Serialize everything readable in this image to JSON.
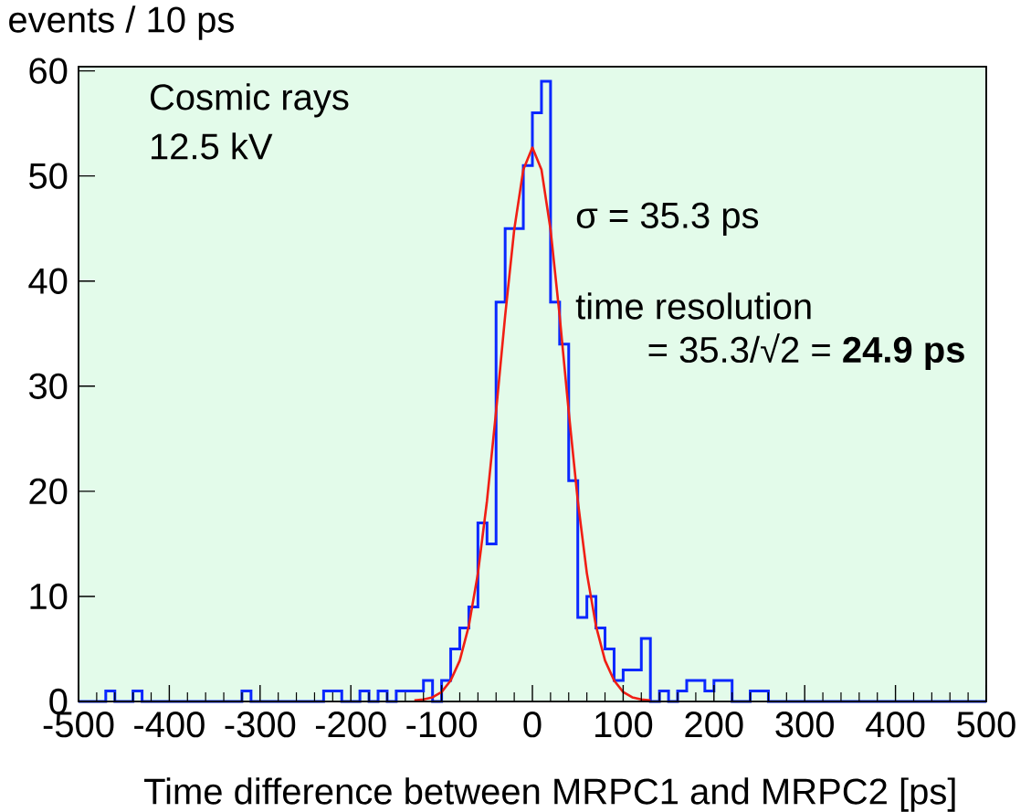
{
  "chart_data": {
    "type": "histogram",
    "xlabel": "Time difference between MRPC1 and MRPC2 [ps]",
    "ylabel": "events / 10 ps",
    "annotations": [
      "Cosmic rays",
      "12.5 kV",
      "σ = 35.3 ps",
      "time resolution",
      "= 35.3/√2 = **24.9 ps**"
    ],
    "series": [
      {
        "type": "histogram",
        "color": "#0a28ff",
        "bins": [
          -500,
          -490,
          -480,
          -470,
          -460,
          -450,
          -440,
          -430,
          -420,
          -410,
          -400,
          -390,
          -380,
          -370,
          -360,
          -350,
          -340,
          -330,
          -320,
          -310,
          -300,
          -290,
          -280,
          -270,
          -260,
          -250,
          -240,
          -230,
          -220,
          -210,
          -200,
          -190,
          -180,
          -170,
          -160,
          -150,
          -140,
          -130,
          -120,
          -110,
          -100,
          -90,
          -80,
          -70,
          -60,
          -50,
          -40,
          -30,
          -20,
          -10,
          0,
          10,
          20,
          30,
          40,
          50,
          60,
          70,
          80,
          90,
          100,
          110,
          120,
          130,
          140,
          150,
          160,
          170,
          180,
          190,
          200,
          210,
          220,
          230,
          240,
          250,
          260,
          270,
          280,
          290,
          300,
          310,
          320,
          330,
          340,
          350,
          360,
          370,
          380,
          390,
          400,
          410,
          420,
          430,
          440,
          450,
          460,
          470,
          480,
          490,
          500
        ],
        "values": [
          0,
          0,
          0,
          1,
          0,
          0,
          1,
          0,
          0,
          0,
          0,
          0,
          0,
          0,
          0,
          0,
          0,
          0,
          1,
          0,
          0,
          0,
          0,
          0,
          0,
          0,
          0,
          1,
          1,
          0,
          0,
          1,
          0,
          1,
          0,
          1,
          1,
          1,
          2,
          0,
          2,
          5,
          7,
          9,
          17,
          15,
          38,
          45,
          45,
          51,
          56,
          59,
          38,
          34,
          21,
          8,
          10,
          7,
          5,
          2,
          3,
          3,
          6,
          0,
          1,
          0,
          1,
          2,
          2,
          1,
          2,
          2,
          0,
          0,
          1,
          1,
          0,
          0,
          0,
          0,
          0,
          0,
          0,
          0,
          0,
          0,
          0,
          0,
          0,
          0,
          0,
          0,
          0,
          0,
          0,
          0,
          0,
          0,
          0,
          0
        ]
      },
      {
        "type": "line",
        "color": "#f01e14",
        "x": [
          -130,
          -120,
          -110,
          -100,
          -90,
          -80,
          -70,
          -60,
          -50,
          -40,
          -30,
          -20,
          -10,
          0,
          10,
          20,
          30,
          40,
          50,
          60,
          70,
          80,
          90,
          100,
          110,
          120,
          130
        ],
        "values": [
          0.1,
          0.2,
          0.4,
          0.9,
          2.0,
          3.9,
          7.2,
          12.2,
          19.1,
          27.6,
          36.7,
          44.9,
          50.6,
          52.7,
          50.6,
          44.9,
          36.7,
          27.6,
          19.1,
          12.2,
          7.2,
          3.9,
          2.0,
          0.9,
          0.4,
          0.2,
          0.1
        ]
      }
    ],
    "xlim": [
      -500,
      500
    ],
    "ylim": [
      0,
      60.4
    ],
    "xticks": [
      -500,
      -400,
      -300,
      -200,
      -100,
      0,
      100,
      200,
      300,
      400,
      500
    ],
    "yticks": [
      0,
      10,
      20,
      30,
      40,
      50,
      60
    ]
  }
}
